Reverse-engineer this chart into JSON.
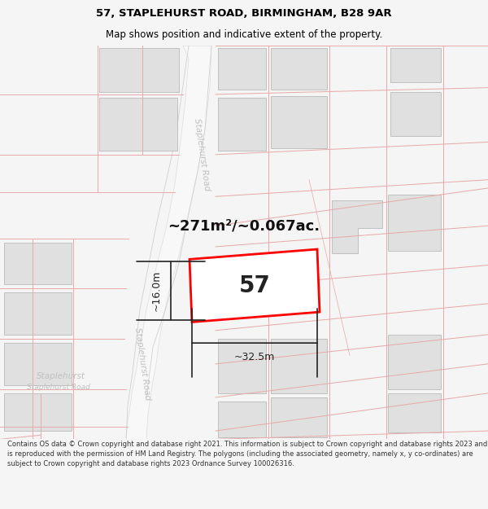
{
  "title_line1": "57, STAPLEHURST ROAD, BIRMINGHAM, B28 9AR",
  "title_line2": "Map shows position and indicative extent of the property.",
  "footer_text": "Contains OS data © Crown copyright and database right 2021. This information is subject to Crown copyright and database rights 2023 and is reproduced with the permission of HM Land Registry. The polygons (including the associated geometry, namely x, y co-ordinates) are subject to Crown copyright and database rights 2023 Ordnance Survey 100026316.",
  "area_label": "~271m²/~0.067ac.",
  "number_label": "57",
  "dim_width": "~32.5m",
  "dim_height": "~16.0m",
  "road_label_upper": "Staplehurst Road",
  "road_label_lower": "Staplehurst Road",
  "road_label_bottom": "Staplehurst Road",
  "map_bg": "#ffffff",
  "building_fill": "#e0e0e0",
  "building_stroke": "#b0b0b0",
  "parcel_line_color": "#e8a8a8",
  "road_fill": "#f0f0f0",
  "road_edge_color": "#cccccc",
  "property_stroke": "#ff0000",
  "property_fill": "#ffffff",
  "dim_color": "#222222",
  "title_color": "#000000",
  "footer_color": "#333333",
  "bg_color": "#f5f5f5",
  "separator_color": "#cccccc"
}
